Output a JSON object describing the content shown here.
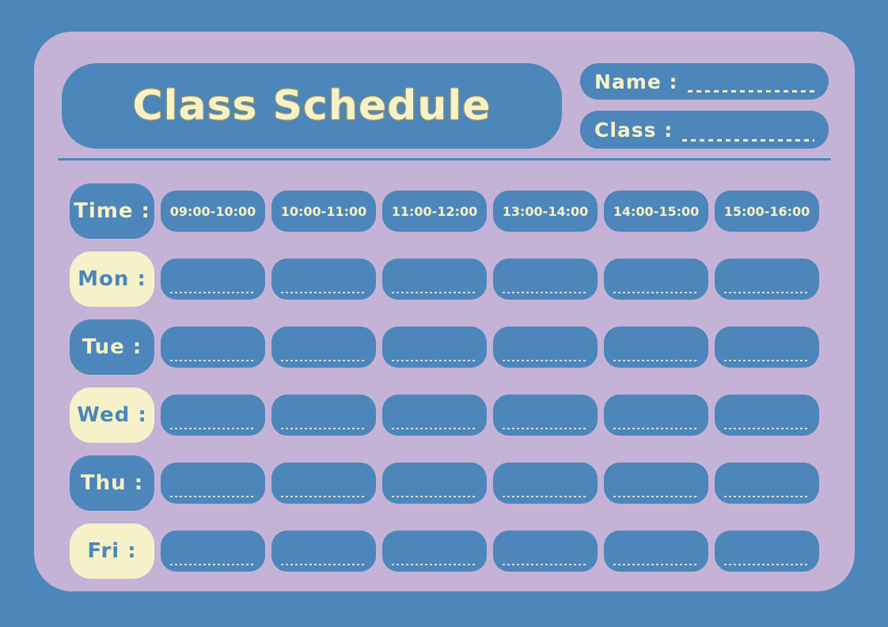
{
  "title": "Class Schedule",
  "fields": {
    "name_label": "Name :",
    "class_label": "Class :"
  },
  "table": {
    "time_label": "Time :",
    "time_slots": [
      "09:00-10:00",
      "10:00-11:00",
      "11:00-12:00",
      "13:00-14:00",
      "14:00-15:00",
      "15:00-16:00"
    ],
    "days": [
      {
        "label": "Mon :",
        "variant": "cream"
      },
      {
        "label": "Tue :",
        "variant": "blue"
      },
      {
        "label": "Wed :",
        "variant": "cream"
      },
      {
        "label": "Thu :",
        "variant": "blue"
      },
      {
        "label": "Fri :",
        "variant": "cream"
      }
    ]
  },
  "colors": {
    "background_blue": "#4c86ba",
    "panel_lavender": "#c4b3d7",
    "box_blue": "#4c86ba",
    "cream": "#f6f1c8",
    "title_outline": "#8e9168",
    "cell_write_line": "#d9dce8"
  }
}
